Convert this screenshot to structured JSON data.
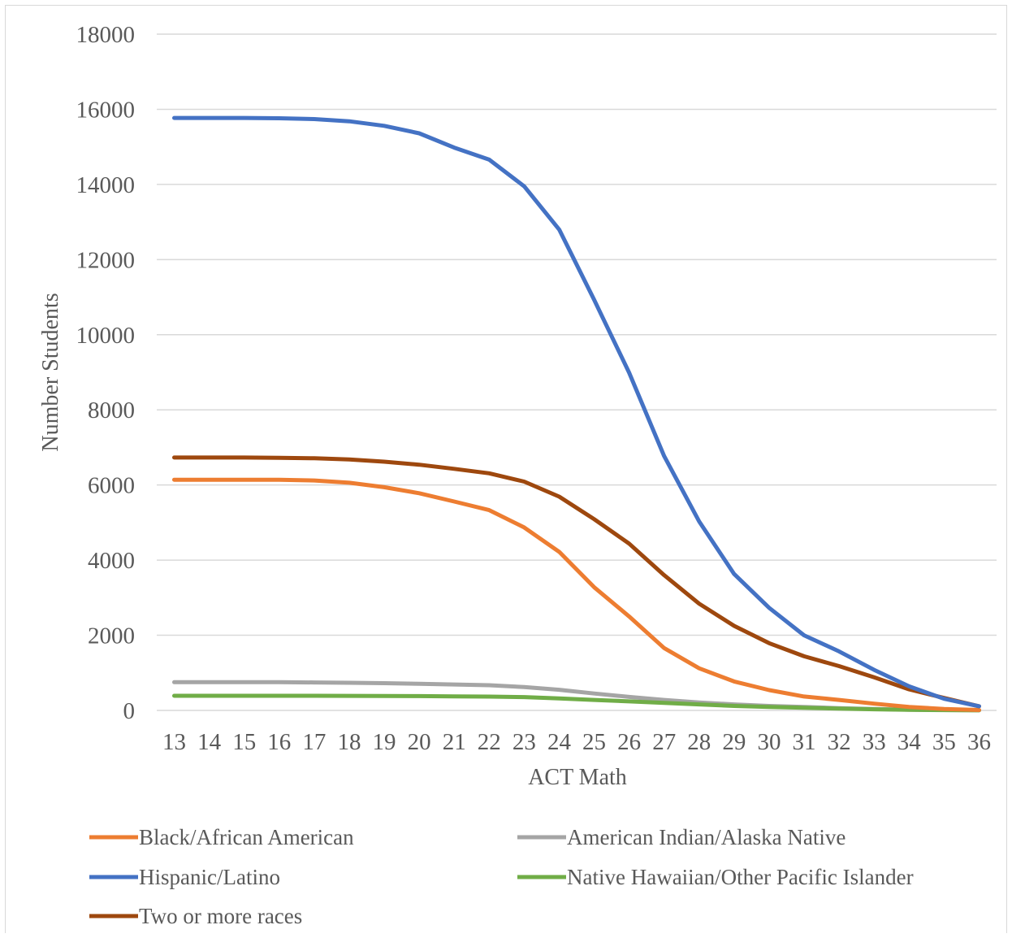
{
  "chart_data": {
    "type": "line",
    "title": "",
    "xlabel": "ACT Math",
    "ylabel": "Number Students",
    "ylim": [
      0,
      18000
    ],
    "yticks": [
      0,
      2000,
      4000,
      6000,
      8000,
      10000,
      12000,
      14000,
      16000,
      18000
    ],
    "grid": true,
    "legend_position": "bottom",
    "x": [
      13,
      14,
      15,
      16,
      17,
      18,
      19,
      20,
      21,
      22,
      23,
      24,
      25,
      26,
      27,
      28,
      29,
      30,
      31,
      32,
      33,
      34,
      35,
      36
    ],
    "series": [
      {
        "name": "Black/African American",
        "color": "#ed7d31",
        "values": [
          6140,
          6140,
          6140,
          6140,
          6120,
          6060,
          5940,
          5780,
          5560,
          5330,
          4870,
          4220,
          3280,
          2500,
          1660,
          1120,
          770,
          540,
          370,
          280,
          180,
          90,
          40,
          10
        ]
      },
      {
        "name": "American Indian/Alaska Native",
        "color": "#a5a5a5",
        "values": [
          750,
          750,
          750,
          750,
          745,
          735,
          725,
          710,
          690,
          670,
          620,
          550,
          450,
          360,
          280,
          210,
          160,
          120,
          90,
          60,
          40,
          20,
          10,
          5
        ]
      },
      {
        "name": "Hispanic/Latino",
        "color": "#4472c4",
        "values": [
          15770,
          15770,
          15770,
          15760,
          15740,
          15680,
          15560,
          15360,
          14980,
          14660,
          13950,
          12800,
          10930,
          8990,
          6770,
          5030,
          3630,
          2730,
          2000,
          1570,
          1080,
          640,
          310,
          110
        ]
      },
      {
        "name": "Native Hawaiian/Other Pacific Islander",
        "color": "#70ad47",
        "values": [
          390,
          390,
          390,
          390,
          390,
          388,
          385,
          380,
          375,
          368,
          355,
          320,
          280,
          240,
          200,
          160,
          120,
          90,
          70,
          50,
          30,
          15,
          8,
          3
        ]
      },
      {
        "name": "Two or more races",
        "color": "#9e480e",
        "values": [
          6730,
          6730,
          6730,
          6725,
          6710,
          6680,
          6620,
          6540,
          6430,
          6310,
          6090,
          5690,
          5090,
          4440,
          3600,
          2840,
          2250,
          1790,
          1440,
          1180,
          880,
          560,
          330,
          110
        ]
      }
    ]
  }
}
